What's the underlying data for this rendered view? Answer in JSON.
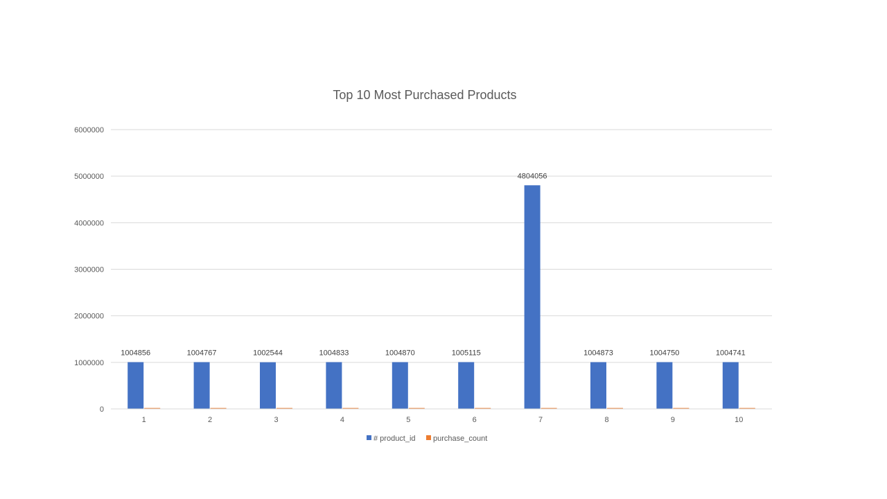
{
  "chart_data": {
    "type": "bar",
    "title": "Top 10 Most Purchased Products",
    "xlabel": "",
    "ylabel": "",
    "categories": [
      "1",
      "2",
      "3",
      "4",
      "5",
      "6",
      "7",
      "8",
      "9",
      "10"
    ],
    "series": [
      {
        "name": "# product_id",
        "color": "#4472C4",
        "values": [
          1004856,
          1004767,
          1002544,
          1004833,
          1004870,
          1005115,
          4804056,
          1004873,
          1004750,
          1004741
        ],
        "data_labels": [
          "1004856",
          "1004767",
          "1002544",
          "1004833",
          "1004870",
          "1005115",
          "4804056",
          "1004873",
          "1004750",
          "1004741"
        ]
      },
      {
        "name": "purchase_count",
        "color": "#ED7D31",
        "values": [
          20000,
          20000,
          20000,
          20000,
          20000,
          20000,
          20000,
          20000,
          20000,
          20000
        ]
      }
    ],
    "ylim": [
      0,
      6000000
    ],
    "yticks": [
      "0",
      "1000000",
      "2000000",
      "3000000",
      "4000000",
      "5000000",
      "6000000"
    ],
    "grid": true,
    "legend_position": "bottom"
  }
}
